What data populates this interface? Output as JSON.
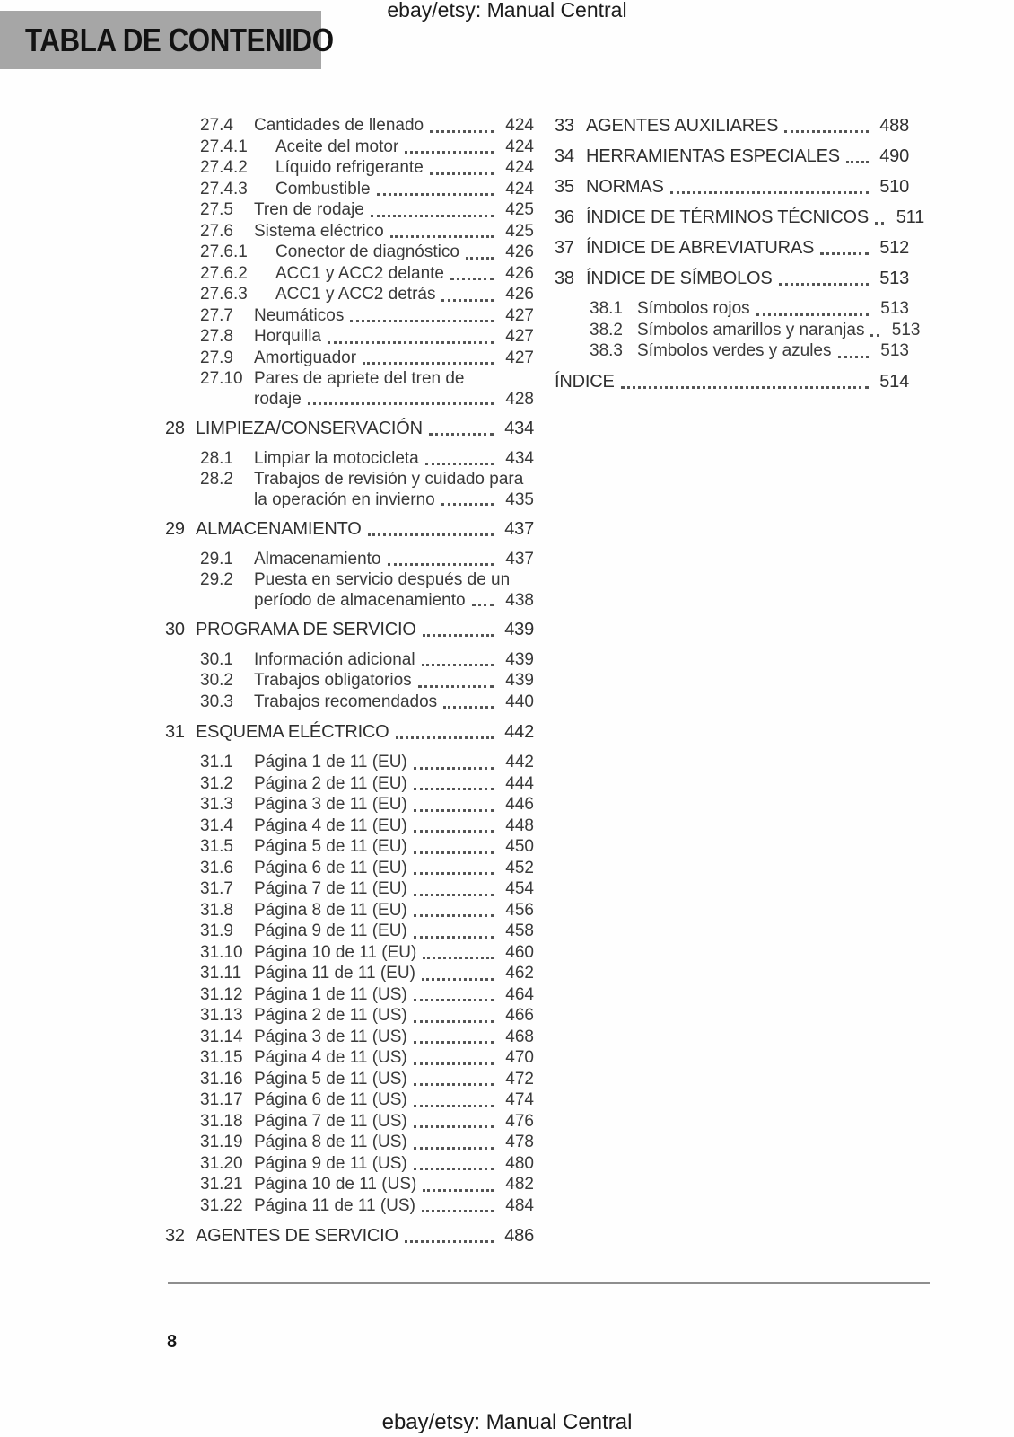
{
  "page_header": {
    "doc_title": "ebay/etsy: Manual Central",
    "section_title": "TABLA DE CONTENIDO"
  },
  "colors": {
    "section_title_bg": "#a6a6a6",
    "body_text": "#3a3a3a",
    "divider": "#8e8e8e"
  },
  "toc": {
    "left_column": [
      {
        "num": "27.4",
        "title": "Cantidades de llenado",
        "page": "424",
        "level": 2
      },
      {
        "num": "27.4.1",
        "title": "Aceite del motor",
        "page": "424",
        "level": 3
      },
      {
        "num": "27.4.2",
        "title": "Líquido refrigerante",
        "page": "424",
        "level": 3
      },
      {
        "num": "27.4.3",
        "title": "Combustible",
        "page": "424",
        "level": 3
      },
      {
        "num": "27.5",
        "title": "Tren de rodaje",
        "page": "425",
        "level": 2
      },
      {
        "num": "27.6",
        "title": "Sistema eléctrico",
        "page": "425",
        "level": 2
      },
      {
        "num": "27.6.1",
        "title": "Conector de diagnóstico",
        "page": "426",
        "level": 3
      },
      {
        "num": "27.6.2",
        "title": "ACC1 y ACC2 delante",
        "page": "426",
        "level": 3
      },
      {
        "num": "27.6.3",
        "title": "ACC1 y ACC2 detrás",
        "page": "426",
        "level": 3
      },
      {
        "num": "27.7",
        "title": "Neumáticos",
        "page": "427",
        "level": 2
      },
      {
        "num": "27.8",
        "title": "Horquilla",
        "page": "427",
        "level": 2
      },
      {
        "num": "27.9",
        "title": "Amortiguador",
        "page": "427",
        "level": 2
      },
      {
        "num": "27.10",
        "title": "Pares de apriete del tren de",
        "title2": "rodaje",
        "page": "428",
        "level": 2
      },
      {
        "num": "28",
        "title": "LIMPIEZA/CONSERVACIÓN",
        "page": "434",
        "level": 1
      },
      {
        "num": "28.1",
        "title": "Limpiar la motocicleta",
        "page": "434",
        "level": 2
      },
      {
        "num": "28.2",
        "title": "Trabajos de revisión y cuidado para",
        "title2": "la operación en invierno",
        "page": "435",
        "level": 2
      },
      {
        "num": "29",
        "title": "ALMACENAMIENTO",
        "page": "437",
        "level": 1
      },
      {
        "num": "29.1",
        "title": "Almacenamiento",
        "page": "437",
        "level": 2
      },
      {
        "num": "29.2",
        "title": "Puesta en servicio después de un",
        "title2": "período de almacenamiento",
        "page": "438",
        "level": 2
      },
      {
        "num": "30",
        "title": "PROGRAMA DE SERVICIO",
        "page": "439",
        "level": 1
      },
      {
        "num": "30.1",
        "title": "Información adicional",
        "page": "439",
        "level": 2
      },
      {
        "num": "30.2",
        "title": "Trabajos obligatorios",
        "page": "439",
        "level": 2
      },
      {
        "num": "30.3",
        "title": "Trabajos recomendados",
        "page": "440",
        "level": 2
      },
      {
        "num": "31",
        "title": "ESQUEMA ELÉCTRICO",
        "page": "442",
        "level": 1
      },
      {
        "num": "31.1",
        "title": "Página 1 de 11 (EU)",
        "page": "442",
        "level": 2
      },
      {
        "num": "31.2",
        "title": "Página 2 de 11 (EU)",
        "page": "444",
        "level": 2
      },
      {
        "num": "31.3",
        "title": "Página 3 de 11 (EU)",
        "page": "446",
        "level": 2
      },
      {
        "num": "31.4",
        "title": "Página 4 de 11 (EU)",
        "page": "448",
        "level": 2
      },
      {
        "num": "31.5",
        "title": "Página 5 de 11 (EU)",
        "page": "450",
        "level": 2
      },
      {
        "num": "31.6",
        "title": "Página 6 de 11 (EU)",
        "page": "452",
        "level": 2
      },
      {
        "num": "31.7",
        "title": "Página 7 de 11 (EU)",
        "page": "454",
        "level": 2
      },
      {
        "num": "31.8",
        "title": "Página 8 de 11 (EU)",
        "page": "456",
        "level": 2
      },
      {
        "num": "31.9",
        "title": "Página 9 de 11 (EU)",
        "page": "458",
        "level": 2
      },
      {
        "num": "31.10",
        "title": "Página 10 de 11 (EU)",
        "page": "460",
        "level": 2
      },
      {
        "num": "31.11",
        "title": "Página 11 de 11 (EU)",
        "page": "462",
        "level": 2
      },
      {
        "num": "31.12",
        "title": "Página 1 de 11 (US)",
        "page": "464",
        "level": 2
      },
      {
        "num": "31.13",
        "title": "Página 2 de 11 (US)",
        "page": "466",
        "level": 2
      },
      {
        "num": "31.14",
        "title": "Página 3 de 11 (US)",
        "page": "468",
        "level": 2
      },
      {
        "num": "31.15",
        "title": "Página 4 de 11 (US)",
        "page": "470",
        "level": 2
      },
      {
        "num": "31.16",
        "title": "Página 5 de 11 (US)",
        "page": "472",
        "level": 2
      },
      {
        "num": "31.17",
        "title": "Página 6 de 11 (US)",
        "page": "474",
        "level": 2
      },
      {
        "num": "31.18",
        "title": "Página 7 de 11 (US)",
        "page": "476",
        "level": 2
      },
      {
        "num": "31.19",
        "title": "Página 8 de 11 (US)",
        "page": "478",
        "level": 2
      },
      {
        "num": "31.20",
        "title": "Página 9 de 11 (US)",
        "page": "480",
        "level": 2
      },
      {
        "num": "31.21",
        "title": "Página 10 de 11 (US)",
        "page": "482",
        "level": 2
      },
      {
        "num": "31.22",
        "title": "Página 11 de 11 (US)",
        "page": "484",
        "level": 2
      },
      {
        "num": "32",
        "title": "AGENTES DE SERVICIO",
        "page": "486",
        "level": 1
      }
    ],
    "right_column": [
      {
        "num": "33",
        "title": "AGENTES AUXILIARES",
        "page": "488",
        "level": 1
      },
      {
        "num": "34",
        "title": "HERRAMIENTAS ESPECIALES",
        "page": "490",
        "level": 1
      },
      {
        "num": "35",
        "title": "NORMAS",
        "page": "510",
        "level": 1
      },
      {
        "num": "36",
        "title": "ÍNDICE DE TÉRMINOS TÉCNICOS",
        "page": "511",
        "level": 1
      },
      {
        "num": "37",
        "title": "ÍNDICE DE ABREVIATURAS",
        "page": "512",
        "level": 1
      },
      {
        "num": "38",
        "title": "ÍNDICE DE SÍMBOLOS",
        "page": "513",
        "level": 1
      },
      {
        "num": "38.1",
        "title": "Símbolos rojos",
        "page": "513",
        "level": 2
      },
      {
        "num": "38.2",
        "title": "Símbolos amarillos y naranjas",
        "page": "513",
        "level": 2
      },
      {
        "num": "38.3",
        "title": "Símbolos verdes y azules",
        "page": "513",
        "level": 2
      },
      {
        "num": "",
        "title": "ÍNDICE",
        "page": "514",
        "level": 1
      }
    ]
  },
  "page_footer": {
    "page_number": "8",
    "doc_title": "ebay/etsy: Manual Central"
  }
}
